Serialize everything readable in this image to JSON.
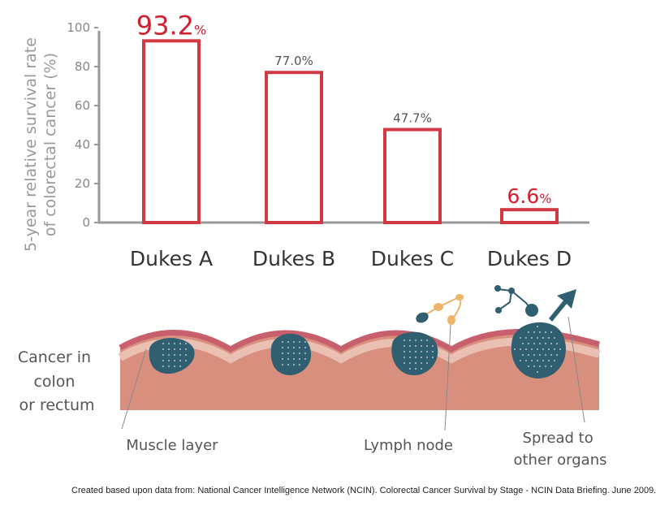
{
  "chart_data": {
    "type": "bar",
    "ylabel_line1": "5-year relative survival rate",
    "ylabel_line2": "of colorectal cancer (%)",
    "ylim": [
      0,
      100
    ],
    "yticks": [
      "0",
      "20",
      "40",
      "60",
      "80",
      "100"
    ],
    "categories": [
      "Dukes A",
      "Dukes B",
      "Dukes C",
      "Dukes D"
    ],
    "values": [
      93.2,
      77.0,
      47.7,
      6.6
    ],
    "labels": [
      {
        "num": "93.2",
        "pct": "%",
        "highlight": true
      },
      {
        "num": "77.0",
        "pct": "%",
        "highlight": false
      },
      {
        "num": "47.7",
        "pct": "%",
        "highlight": false
      },
      {
        "num": "6.6",
        "pct": "%",
        "highlight": true
      }
    ],
    "colors": {
      "bar": "#d03a45",
      "axis": "#999999",
      "highlight_text": "#d0202f",
      "label_text": "#555555"
    }
  },
  "illustration": {
    "side_label": [
      "Cancer in",
      "colon",
      "or rectum"
    ],
    "muscle_label": "Muscle layer",
    "lymph_label": "Lymph node",
    "spread_label": [
      "Spread to",
      "other organs"
    ]
  },
  "footer": "Created based upon data from: National Cancer Intelligence Network (NCIN). Colorectal Cancer Survival by Stage - NCIN Data Briefing. June 2009."
}
